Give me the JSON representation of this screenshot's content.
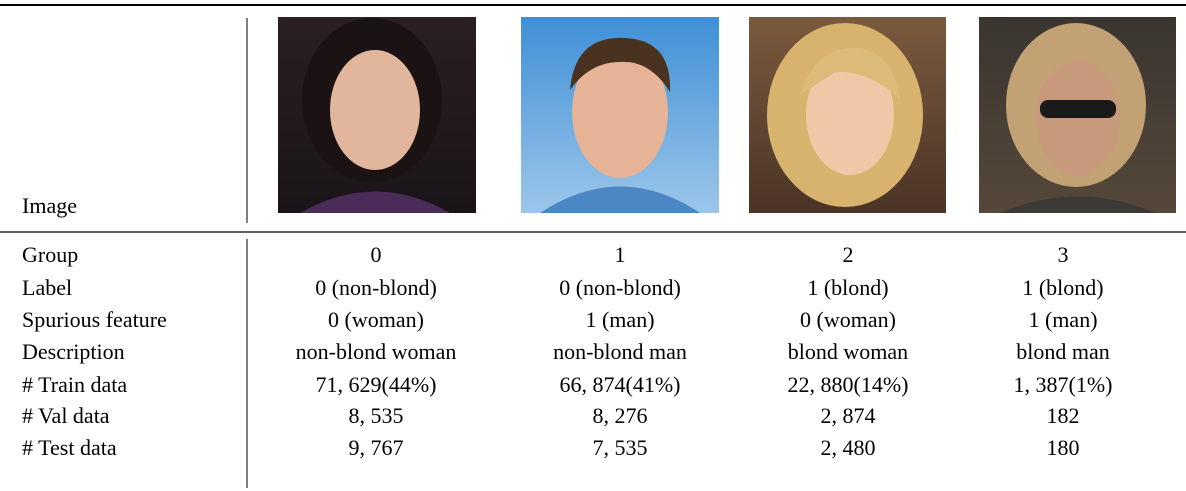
{
  "table": {
    "image_row_label": "Image",
    "rows": [
      [
        "Group",
        "0",
        "1",
        "2",
        "3"
      ],
      [
        "Label",
        "0 (non-blond)",
        "0 (non-blond)",
        "1 (blond)",
        "1 (blond)"
      ],
      [
        "Spurious feature",
        "0 (woman)",
        "1 (man)",
        "0 (woman)",
        "1 (man)"
      ],
      [
        "Description",
        "non-blond woman",
        "non-blond man",
        "blond woman",
        "blond man"
      ],
      [
        "# Train data",
        "71, 629(44%)",
        "66, 874(41%)",
        "22, 880(14%)",
        "1, 387(1%)"
      ],
      [
        "# Val data",
        "8, 535",
        "8, 276",
        "2, 874",
        "182"
      ],
      [
        "# Test data",
        "9, 767",
        "7, 535",
        "2, 480",
        "180"
      ]
    ]
  }
}
